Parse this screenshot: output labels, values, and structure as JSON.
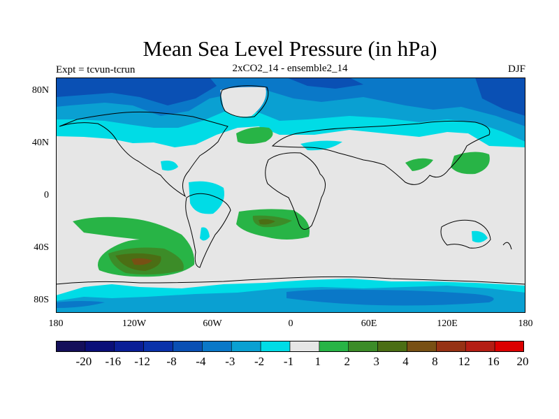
{
  "title": "Mean Sea Level Pressure (in hPa)",
  "experiment": "Expt = tcvun-tcrun",
  "run_name": "2xCO2_14 - ensemble2_14",
  "season": "DJF",
  "y_axis": {
    "ticks": [
      "80N",
      "40N",
      "0",
      "40S",
      "80S"
    ]
  },
  "x_axis": {
    "ticks": [
      "180",
      "120W",
      "60W",
      "0",
      "60E",
      "120E",
      "180"
    ]
  },
  "colorbar": {
    "labels": [
      "-20",
      "-16",
      "-12",
      "-8",
      "-4",
      "-3",
      "-2",
      "-1",
      "1",
      "2",
      "3",
      "4",
      "8",
      "12",
      "16",
      "20"
    ],
    "colors": [
      "#140f5a",
      "#0a0f78",
      "#0a1e96",
      "#0a32aa",
      "#0a50b4",
      "#0a78c8",
      "#0aa0d2",
      "#00dce6",
      "#e6e6e6",
      "#28b446",
      "#3c8c28",
      "#4b6e14",
      "#785014",
      "#963214",
      "#b41e14",
      "#dc0000"
    ]
  }
}
